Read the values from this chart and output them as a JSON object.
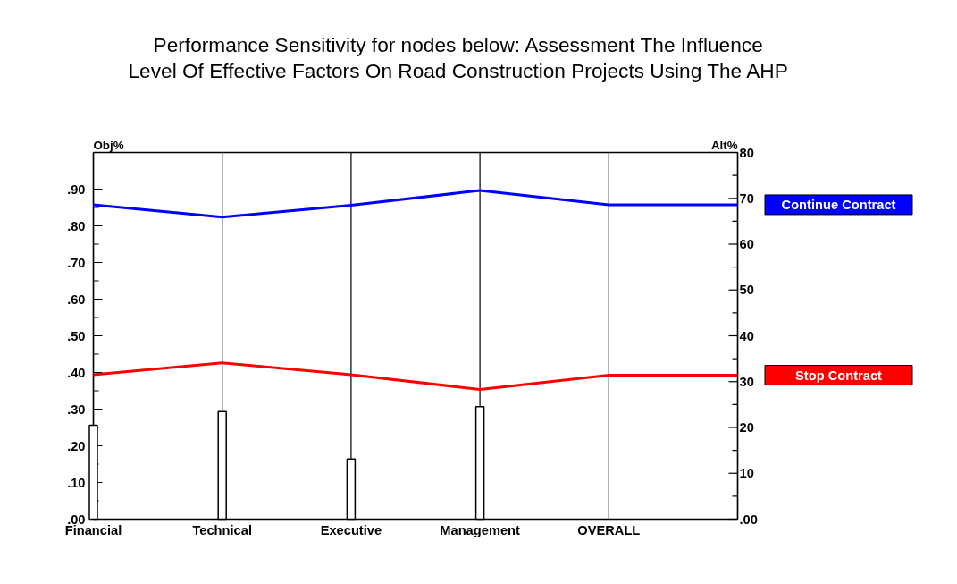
{
  "chart_data": {
    "type": "line",
    "title": "Performance Sensitivity for nodes below: Assessment The Influence\nLevel Of Effective Factors On Road Construction Projects Using The AHP",
    "ylabel": "Obj%",
    "y2label": "Alt%",
    "categories": [
      "Financial",
      "Technical",
      "Executive",
      "Management",
      "OVERALL",
      null
    ],
    "series": [
      {
        "type": "bar",
        "color": "#ffffff",
        "values": [
          0.256,
          0.293,
          0.164,
          0.307,
          null,
          null
        ]
      },
      {
        "name": "Continue Contract",
        "color": "#0000ff",
        "axis": "y2",
        "values": [
          68.6,
          65.9,
          68.5,
          71.7,
          68.6,
          68.6
        ]
      },
      {
        "name": "Stop Contract",
        "color": "#ff0000",
        "axis": "y2",
        "values": [
          31.5,
          34.1,
          31.5,
          28.3,
          31.4,
          31.4
        ]
      }
    ],
    "ylim": [
      0,
      1
    ],
    "yticks": [
      {
        "value": 0,
        "label": ".00"
      },
      {
        "value": 0.1,
        "label": ".10"
      },
      {
        "value": 0.2,
        "label": ".20"
      },
      {
        "value": 0.3,
        "label": ".30"
      },
      {
        "value": 0.4,
        "label": ".40"
      },
      {
        "value": 0.5,
        "label": ".50"
      },
      {
        "value": 0.6,
        "label": ".60"
      },
      {
        "value": 0.7,
        "label": ".70"
      },
      {
        "value": 0.8,
        "label": ".80"
      },
      {
        "value": 0.9,
        "label": ".90"
      }
    ],
    "y2lim": [
      0,
      80
    ],
    "y2ticks": [
      {
        "value": 0,
        "label": ".00"
      },
      10,
      20,
      30,
      40,
      50,
      60,
      70,
      80
    ],
    "grid": "x"
  }
}
